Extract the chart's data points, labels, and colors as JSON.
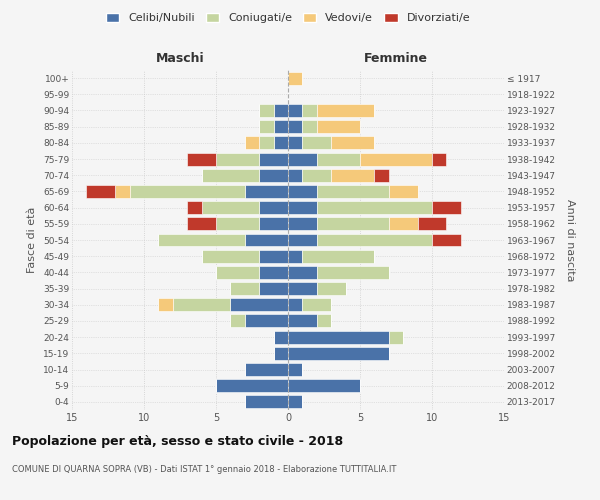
{
  "age_groups": [
    "0-4",
    "5-9",
    "10-14",
    "15-19",
    "20-24",
    "25-29",
    "30-34",
    "35-39",
    "40-44",
    "45-49",
    "50-54",
    "55-59",
    "60-64",
    "65-69",
    "70-74",
    "75-79",
    "80-84",
    "85-89",
    "90-94",
    "95-99",
    "100+"
  ],
  "birth_years": [
    "2013-2017",
    "2008-2012",
    "2003-2007",
    "1998-2002",
    "1993-1997",
    "1988-1992",
    "1983-1987",
    "1978-1982",
    "1973-1977",
    "1968-1972",
    "1963-1967",
    "1958-1962",
    "1953-1957",
    "1948-1952",
    "1943-1947",
    "1938-1942",
    "1933-1937",
    "1928-1932",
    "1923-1927",
    "1918-1922",
    "≤ 1917"
  ],
  "colors": {
    "celibi": "#4a72a8",
    "coniugati": "#c5d5a0",
    "vedovi": "#f5c97a",
    "divorziati": "#c0392b"
  },
  "males": {
    "celibi": [
      3,
      5,
      3,
      1,
      1,
      3,
      4,
      2,
      2,
      2,
      3,
      2,
      2,
      3,
      2,
      2,
      1,
      1,
      1,
      0,
      0
    ],
    "coniugati": [
      0,
      0,
      0,
      0,
      0,
      1,
      4,
      2,
      3,
      4,
      6,
      3,
      4,
      8,
      4,
      3,
      1,
      1,
      1,
      0,
      0
    ],
    "vedovi": [
      0,
      0,
      0,
      0,
      0,
      0,
      1,
      0,
      0,
      0,
      0,
      0,
      0,
      1,
      0,
      0,
      1,
      0,
      0,
      0,
      0
    ],
    "divorziati": [
      0,
      0,
      0,
      0,
      0,
      0,
      0,
      0,
      0,
      0,
      0,
      2,
      1,
      2,
      0,
      2,
      0,
      0,
      0,
      0,
      0
    ]
  },
  "females": {
    "celibi": [
      1,
      5,
      1,
      7,
      7,
      2,
      1,
      2,
      2,
      1,
      2,
      2,
      2,
      2,
      1,
      2,
      1,
      1,
      1,
      0,
      0
    ],
    "coniugati": [
      0,
      0,
      0,
      0,
      1,
      1,
      2,
      2,
      5,
      5,
      8,
      5,
      8,
      5,
      2,
      3,
      2,
      1,
      1,
      0,
      0
    ],
    "vedovi": [
      0,
      0,
      0,
      0,
      0,
      0,
      0,
      0,
      0,
      0,
      0,
      2,
      0,
      2,
      3,
      5,
      3,
      3,
      4,
      0,
      1
    ],
    "divorziati": [
      0,
      0,
      0,
      0,
      0,
      0,
      0,
      0,
      0,
      0,
      2,
      2,
      2,
      0,
      1,
      1,
      0,
      0,
      0,
      0,
      0
    ]
  },
  "title": "Popolazione per età, sesso e stato civile - 2018",
  "subtitle": "COMUNE DI QUARNA SOPRA (VB) - Dati ISTAT 1° gennaio 2018 - Elaborazione TUTTITALIA.IT",
  "xlabel_left": "Maschi",
  "xlabel_right": "Femmine",
  "ylabel_left": "Fasce di età",
  "ylabel_right": "Anni di nascita",
  "xlim": 15,
  "legend_labels": [
    "Celibi/Nubili",
    "Coniugati/e",
    "Vedovi/e",
    "Divorziati/e"
  ],
  "bg_color": "#f5f5f5",
  "grid_color": "#cccccc"
}
